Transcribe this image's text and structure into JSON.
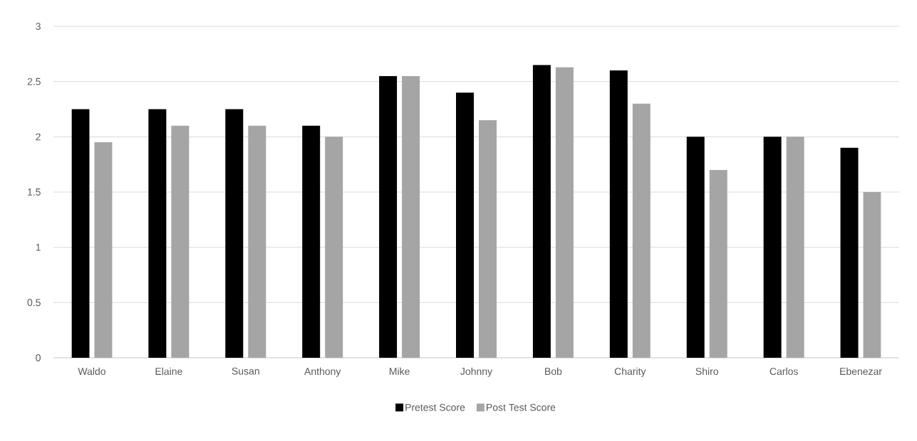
{
  "chart_data": {
    "type": "bar",
    "categories": [
      "Waldo",
      "Elaine",
      "Susan",
      "Anthony",
      "Mike",
      "Johnny",
      "Bob",
      "Charity",
      "Shiro",
      "Carlos",
      "Ebenezar"
    ],
    "series": [
      {
        "name": "Pretest Score",
        "color": "#000000",
        "values": [
          2.25,
          2.25,
          2.25,
          2.1,
          2.55,
          2.4,
          2.65,
          2.6,
          2.0,
          2.0,
          1.9
        ]
      },
      {
        "name": "Post Test Score",
        "color": "#a5a5a5",
        "values": [
          1.95,
          2.1,
          2.1,
          2.0,
          2.55,
          2.15,
          2.63,
          2.3,
          1.7,
          2.0,
          1.5
        ]
      }
    ],
    "ylim": [
      0,
      3
    ],
    "yticks": [
      0,
      0.5,
      1,
      1.5,
      2,
      2.5,
      3
    ],
    "grid": "y",
    "legend": "bottom"
  }
}
